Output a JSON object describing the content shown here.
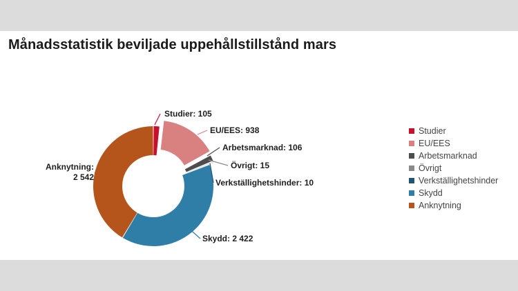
{
  "title": "Månadsstatistik beviljade uppehållstillstånd mars",
  "chart_data": {
    "type": "pie",
    "subtype": "donut",
    "title": "Månadsstatistik beviljade uppehållstillstånd mars",
    "legend_position": "right",
    "slices": [
      {
        "name": "Studier",
        "value": 105,
        "label": "Studier: 105",
        "color": "#c8102e"
      },
      {
        "name": "EU/EES",
        "value": 938,
        "label": "EU/EES: 938",
        "color": "#d98080"
      },
      {
        "name": "Arbetsmarknad",
        "value": 106,
        "label": "Arbetsmarknad: 106",
        "color": "#4d4d4d"
      },
      {
        "name": "Övrigt",
        "value": 15,
        "label": "Övrigt: 15",
        "color": "#8a8a8a"
      },
      {
        "name": "Verkställighetshinder",
        "value": 10,
        "label": "Verkställighetshinder: 10",
        "color": "#1f5572"
      },
      {
        "name": "Skydd",
        "value": 2422,
        "label": "Skydd: 2 422",
        "color": "#2e7ea8"
      },
      {
        "name": "Anknytning",
        "value": 2542,
        "label_lines": [
          "Anknytning:",
          "2 542"
        ],
        "color": "#b5541b"
      }
    ]
  }
}
